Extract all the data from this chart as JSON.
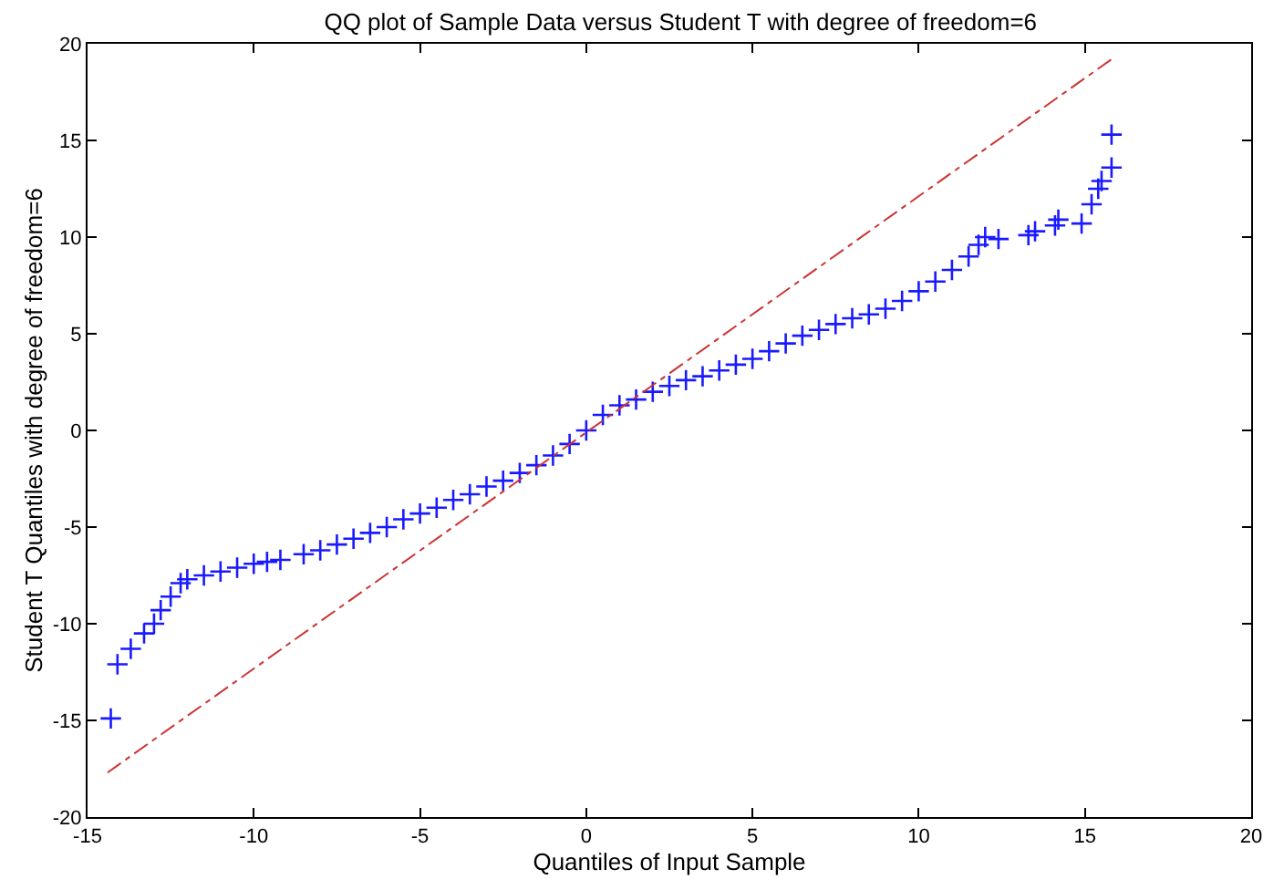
{
  "chart_data": {
    "type": "scatter",
    "title": "QQ plot of Sample Data versus Student T with degree of freedom=6",
    "xlabel": "Quantiles of Input Sample",
    "ylabel": "Student T Quantiles with degree of freedom=6",
    "xlim": [
      -15,
      20
    ],
    "ylim": [
      -20,
      20
    ],
    "xticks": [
      -15,
      -10,
      -5,
      0,
      5,
      10,
      15,
      20
    ],
    "yticks": [
      -20,
      -15,
      -10,
      -5,
      0,
      5,
      10,
      15,
      20
    ],
    "legend": false,
    "series": [
      {
        "marker": "cross",
        "color": "#1a1aff",
        "x": [
          -14.3,
          -14.1,
          -13.7,
          -13.3,
          -13.0,
          -12.8,
          -12.5,
          -12.2,
          -12.0,
          -11.5,
          -11.0,
          -10.5,
          -10.0,
          -9.6,
          -9.2,
          -8.5,
          -8.0,
          -7.5,
          -7.0,
          -6.5,
          -6.0,
          -5.5,
          -5.0,
          -4.5,
          -4.0,
          -3.5,
          -3.0,
          -2.5,
          -2.0,
          -1.5,
          -1.0,
          -0.5,
          0.0,
          0.5,
          1.0,
          1.5,
          2.0,
          2.5,
          3.0,
          3.5,
          4.0,
          4.5,
          5.0,
          5.5,
          6.0,
          6.5,
          7.0,
          7.5,
          8.0,
          8.5,
          9.0,
          9.5,
          10.0,
          10.5,
          11.0,
          11.5,
          11.8,
          12.0,
          12.4,
          13.3,
          13.5,
          14.1,
          14.2,
          14.9,
          15.2,
          15.4,
          15.5,
          15.8,
          15.8
        ],
        "values": [
          -14.9,
          -12.1,
          -11.3,
          -10.5,
          -10.0,
          -9.3,
          -8.6,
          -7.9,
          -7.7,
          -7.5,
          -7.3,
          -7.1,
          -6.9,
          -6.8,
          -6.7,
          -6.4,
          -6.2,
          -5.9,
          -5.6,
          -5.3,
          -5.0,
          -4.6,
          -4.3,
          -4.0,
          -3.6,
          -3.3,
          -2.9,
          -2.6,
          -2.2,
          -1.8,
          -1.3,
          -0.7,
          0.0,
          0.8,
          1.3,
          1.6,
          2.0,
          2.3,
          2.6,
          2.8,
          3.1,
          3.4,
          3.7,
          4.1,
          4.5,
          4.9,
          5.2,
          5.5,
          5.8,
          6.0,
          6.3,
          6.7,
          7.2,
          7.7,
          8.3,
          9.0,
          9.6,
          10.0,
          9.9,
          10.1,
          10.3,
          10.6,
          10.9,
          10.7,
          11.7,
          12.5,
          12.9,
          13.6,
          15.3
        ]
      },
      {
        "type": "line",
        "color": "#cc3333",
        "line_style": "dashed",
        "x": [
          -14.4,
          15.8
        ],
        "values": [
          -17.7,
          19.2
        ]
      }
    ]
  }
}
